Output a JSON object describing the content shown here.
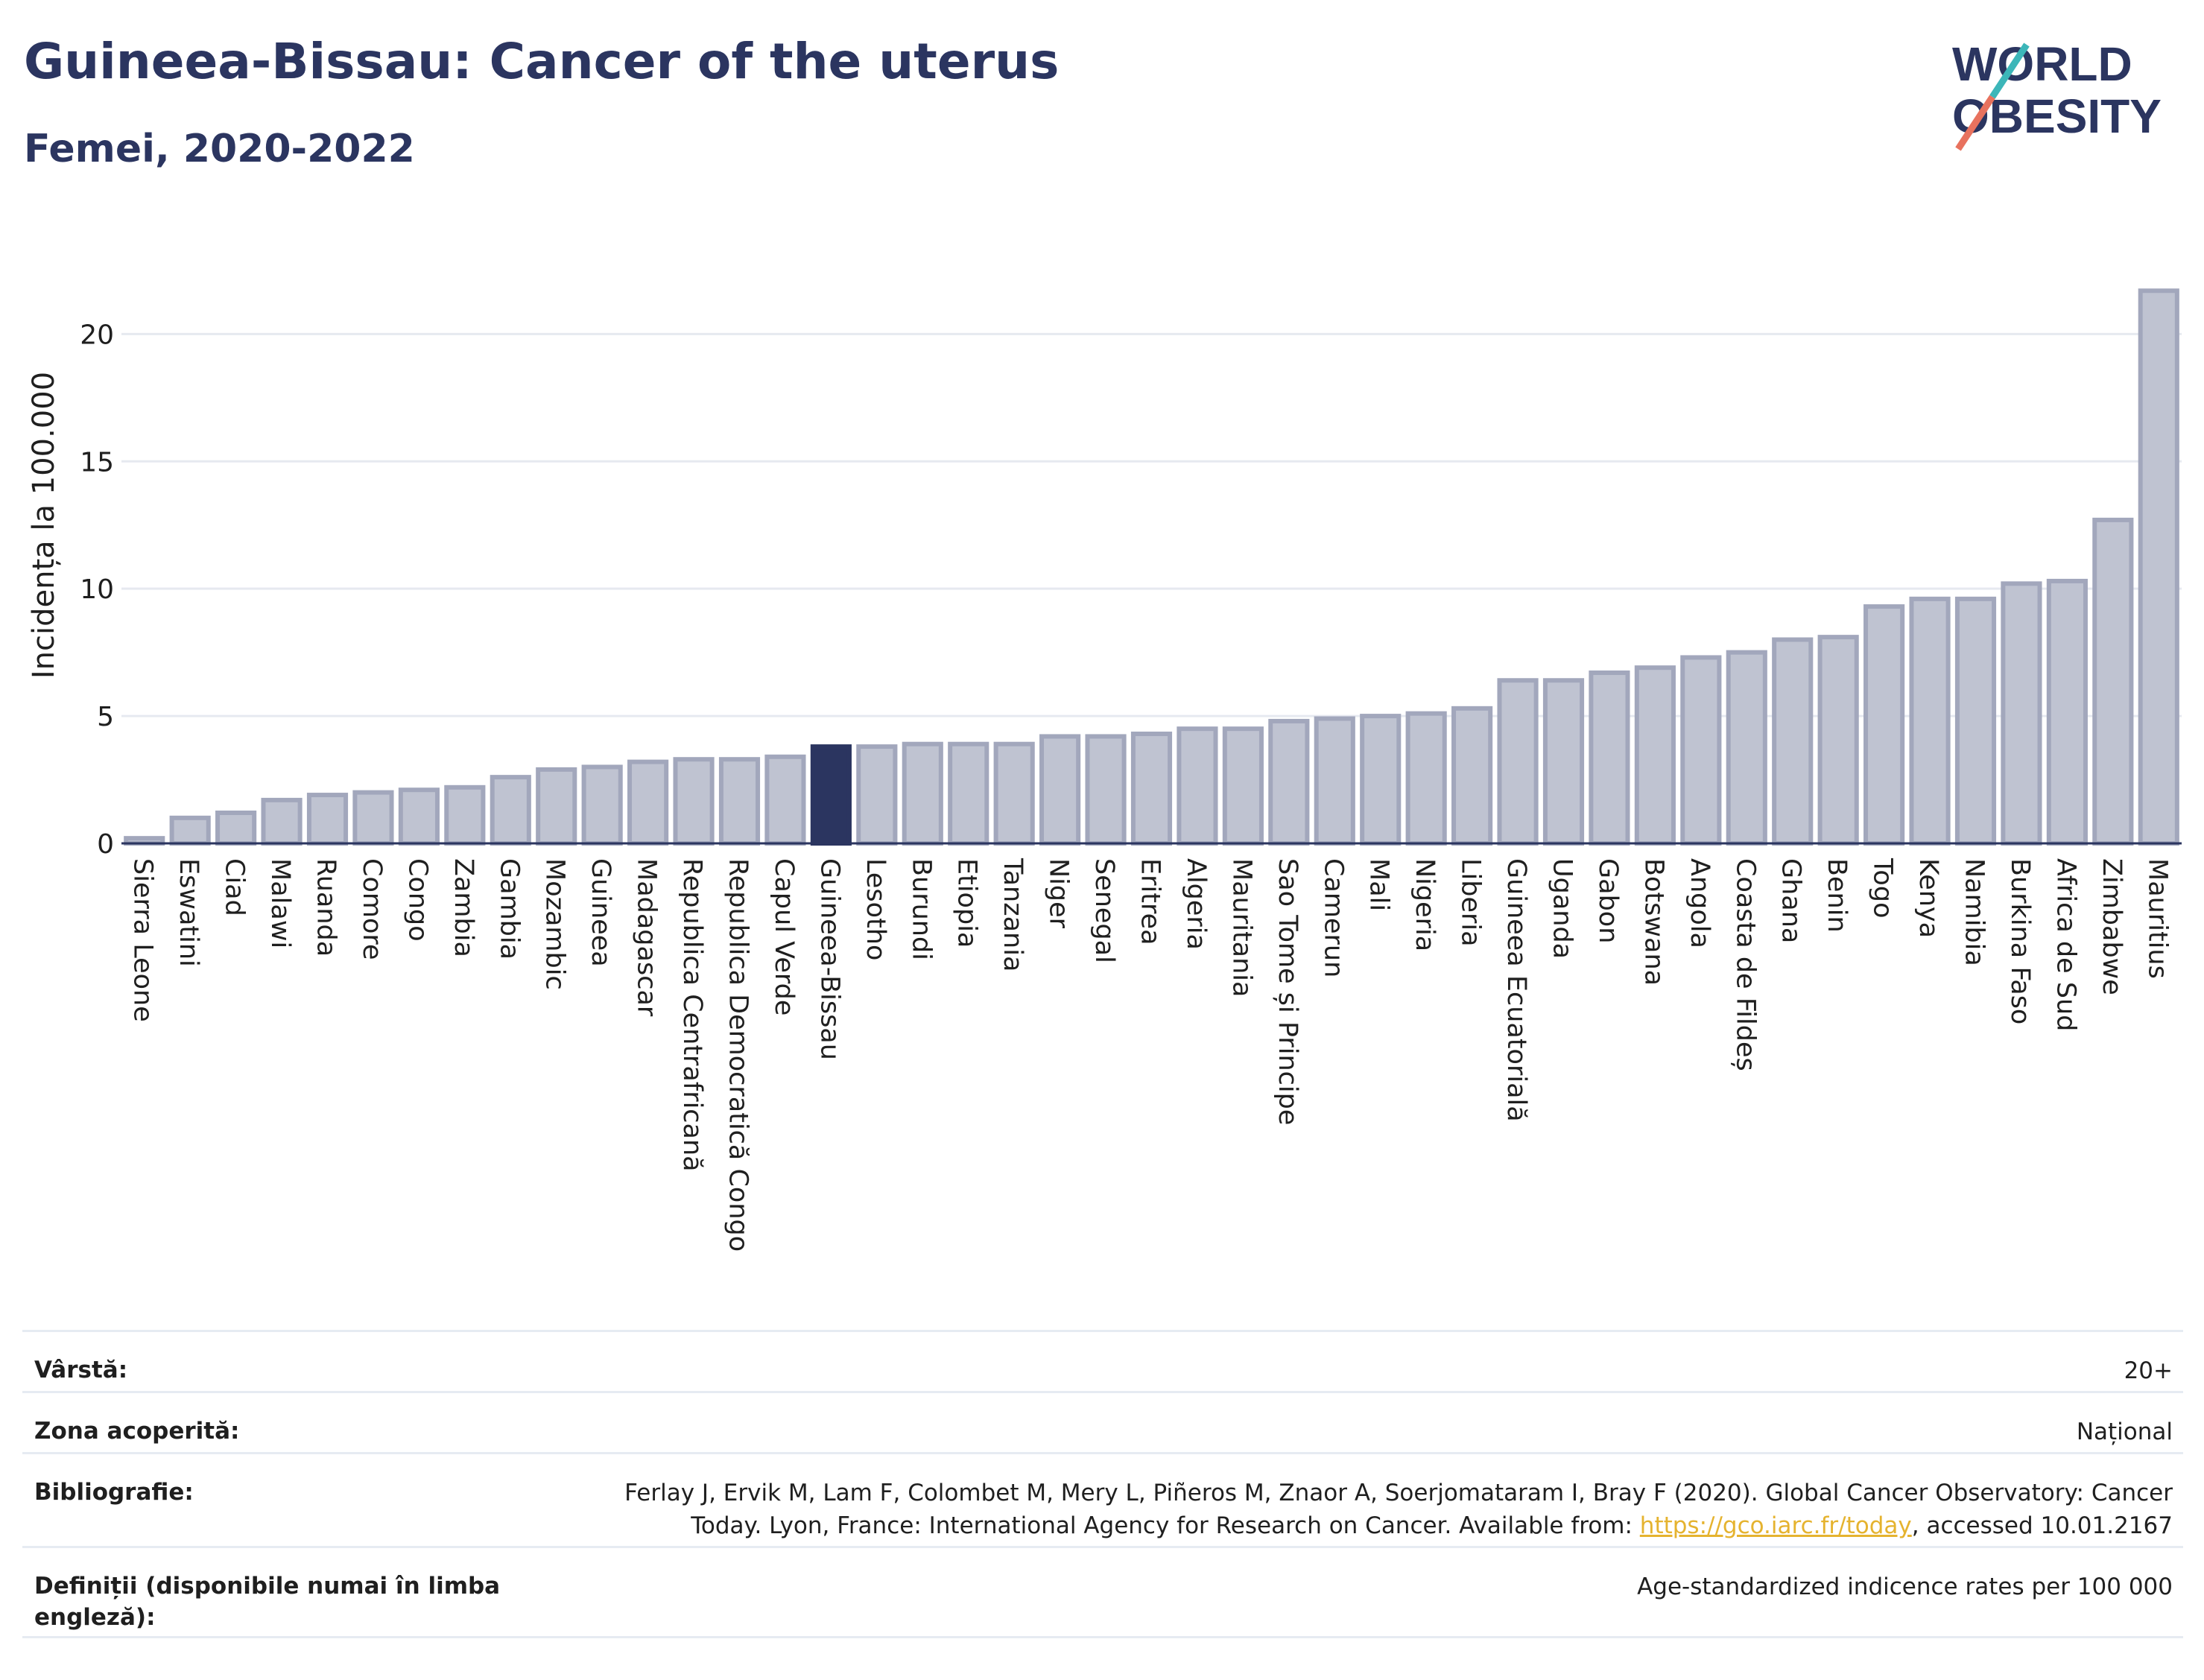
{
  "header": {
    "title": "Guineea-Bissau: Cancer of the uterus",
    "subtitle": "Femei, 2020-2022"
  },
  "logo": {
    "line1": "WORLD",
    "line2": "OBESITY"
  },
  "chart_data": {
    "type": "bar",
    "ylabel": "Incidența la 100.000",
    "xlabel": "",
    "ylim": [
      0,
      22
    ],
    "yticks": [
      0,
      5,
      10,
      15,
      20
    ],
    "grid": true,
    "highlight": "Guineea-Bissau",
    "colors": {
      "bar": "#bfc3d1",
      "bar_edge": "#a2a7bc",
      "highlight": "#2b3560",
      "axis": "#2b3560",
      "grid": "#e6e9f0"
    },
    "categories": [
      "Sierra Leone",
      "Eswatini",
      "Ciad",
      "Malawi",
      "Ruanda",
      "Comore",
      "Congo",
      "Zambia",
      "Gambia",
      "Mozambic",
      "Guineea",
      "Madagascar",
      "Republica Centrafricană",
      "Republica Democratică Congo",
      "Capul Verde",
      "Guineea-Bissau",
      "Lesotho",
      "Burundi",
      "Etiopia",
      "Tanzania",
      "Niger",
      "Senegal",
      "Eritrea",
      "Algeria",
      "Mauritania",
      "Sao Tome și Principe",
      "Camerun",
      "Mali",
      "Nigeria",
      "Liberia",
      "Guineea Ecuatorială",
      "Uganda",
      "Gabon",
      "Botswana",
      "Angola",
      "Coasta de Fildeș",
      "Ghana",
      "Benin",
      "Togo",
      "Kenya",
      "Namibia",
      "Burkina Faso",
      "Africa de Sud",
      "Zimbabwe",
      "Mauritius"
    ],
    "values": [
      0.2,
      1.0,
      1.2,
      1.7,
      1.9,
      2.0,
      2.1,
      2.2,
      2.6,
      2.9,
      3.0,
      3.2,
      3.3,
      3.3,
      3.4,
      3.8,
      3.8,
      3.9,
      3.9,
      3.9,
      4.2,
      4.2,
      4.3,
      4.5,
      4.5,
      4.8,
      4.9,
      5.0,
      5.1,
      5.3,
      6.4,
      6.4,
      6.7,
      6.9,
      7.3,
      7.5,
      8.0,
      8.1,
      9.3,
      9.6,
      9.6,
      10.2,
      10.3,
      12.7,
      21.7
    ]
  },
  "info": {
    "rows": [
      {
        "label": "Vârstă:",
        "value": "20+"
      },
      {
        "label": "Zona acoperită:",
        "value": "Național"
      },
      {
        "label": "Bibliografie:",
        "value_pre": "Ferlay J, Ervik M, Lam F, Colombet M, Mery L, Piñeros M, Znaor A, Soerjomataram I, Bray F (2020). Global Cancer Observatory: Cancer Today. Lyon, France: International Agency for Research on Cancer. Available from: ",
        "link": "https://gco.iarc.fr/today",
        "value_post": ", accessed 10.01.2167"
      },
      {
        "label": "Definiții (disponibile numai în limba engleză):",
        "value": "Age-standardized indicence rates per 100 000"
      }
    ]
  }
}
